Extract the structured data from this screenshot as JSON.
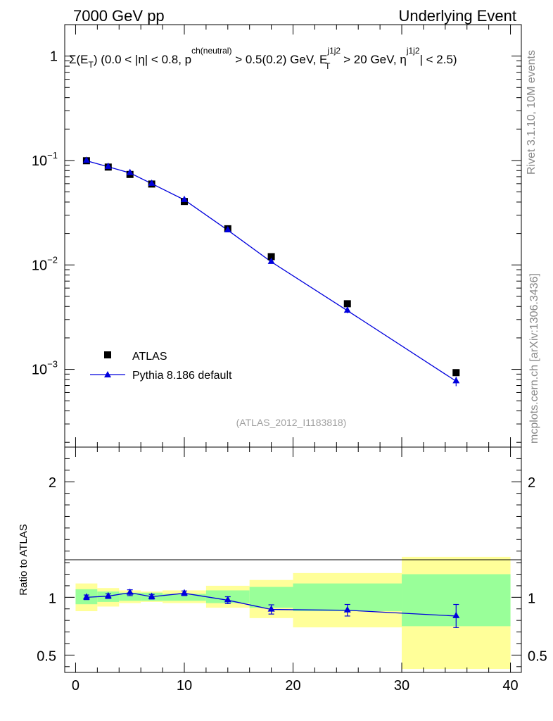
{
  "header": {
    "left": "7000 GeV pp",
    "right": "Underlying Event"
  },
  "side_text": {
    "rivet": "Rivet 3.1.10,  10M events",
    "mcplots": "mcplots.cern.ch [arXiv:1306.3436]"
  },
  "chart_data": [
    {
      "type": "scatter",
      "panel": "main",
      "title": "Σ(E_T) (0.0 < |η| < 0.8, p^ch(neutral) > 0.5(0.2) GeV, E_T^j1j2 > 20 GeV, η^j1j2 < 2.5)",
      "title_parts": {
        "sigma": "Σ(E",
        "sub_T": "T",
        "mid1": ") (0.0 < |η| < 0.8, p",
        "sup_ch": "ch(neutral)",
        "mid2": " > 0.5(0.2) GeV, E",
        "sup_j": "j1j2",
        "sub_T2": "T",
        "mid3": " > 20 GeV, η",
        "sup_j2": "j1j2",
        "end": "| < 2.5)"
      },
      "analysis_id": "(ATLAS_2012_I1183818)",
      "yscale": "log",
      "ylim": [
        0.00018,
        2.0
      ],
      "xlim": [
        -1,
        41
      ],
      "y_ticks": [
        {
          "base": "10",
          "exp": "−3",
          "value": 0.001
        },
        {
          "base": "10",
          "exp": "−2",
          "value": 0.01
        },
        {
          "base": "10",
          "exp": "−1",
          "value": 0.1
        },
        {
          "base": "1",
          "exp": "",
          "value": 1
        }
      ],
      "legend_position": "lower-left",
      "series": [
        {
          "name": "ATLAS",
          "marker": "square",
          "color": "#000000",
          "x": [
            1,
            3,
            5,
            7,
            10,
            14,
            18,
            25,
            35
          ],
          "y": [
            0.0995,
            0.0865,
            0.0735,
            0.0595,
            0.0405,
            0.0222,
            0.012,
            0.00425,
            0.00093
          ]
        },
        {
          "name": "Pythia 8.186 default",
          "marker": "triangle",
          "color": "#0000dd",
          "x": [
            1,
            3,
            5,
            7,
            10,
            14,
            18,
            25,
            35
          ],
          "y": [
            0.0995,
            0.087,
            0.076,
            0.06,
            0.042,
            0.0215,
            0.0107,
            0.00365,
            0.00077
          ],
          "yerr": [
            0.002,
            0.002,
            0.0025,
            0.002,
            0.0015,
            0.0008,
            0.0004,
            0.0002,
            8e-05
          ]
        }
      ]
    },
    {
      "type": "scatter",
      "panel": "ratio",
      "ylabel": "Ratio to ATLAS",
      "ylim": [
        0.35,
        2.3
      ],
      "xlim": [
        -1,
        41
      ],
      "y_ticks": [
        "0.5",
        "1",
        "2"
      ],
      "x_ticks": [
        "0",
        "10",
        "20",
        "30",
        "40"
      ],
      "bands": {
        "bin_edges": [
          0,
          2,
          4,
          6,
          8,
          12,
          16,
          20,
          30,
          40
        ],
        "green_low": [
          0.94,
          0.96,
          0.97,
          0.97,
          0.97,
          0.95,
          0.91,
          0.88,
          0.75
        ],
        "green_high": [
          1.07,
          1.05,
          1.04,
          1.04,
          1.03,
          1.06,
          1.09,
          1.12,
          1.2
        ],
        "yellow_low": [
          0.88,
          0.92,
          0.95,
          0.96,
          0.95,
          0.91,
          0.82,
          0.74,
          0.38
        ],
        "yellow_high": [
          1.12,
          1.08,
          1.06,
          1.05,
          1.06,
          1.1,
          1.15,
          1.21,
          1.35
        ]
      },
      "series": [
        {
          "name": "Pythia 8.186 default",
          "x": [
            1,
            3,
            5,
            7,
            10,
            14,
            18,
            25,
            35
          ],
          "y": [
            1.0,
            1.01,
            1.04,
            1.005,
            1.035,
            0.975,
            0.895,
            0.888,
            0.838
          ],
          "yerr": [
            0.02,
            0.02,
            0.025,
            0.02,
            0.02,
            0.03,
            0.04,
            0.05,
            0.1
          ]
        }
      ]
    }
  ]
}
